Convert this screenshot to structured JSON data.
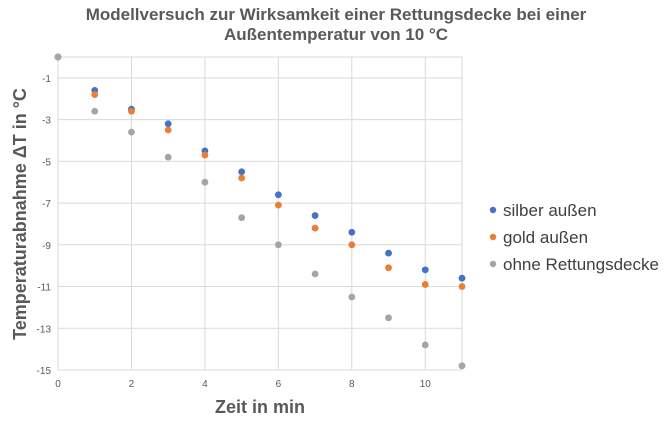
{
  "chart_data": {
    "type": "scatter",
    "title": [
      "Modellversuch zur Wirksamkeit einer Rettungsdecke bei einer",
      "Außentemperatur von 10 °C"
    ],
    "xlabel": "Zeit in min",
    "ylabel": "Temperaturabnahme ΔT in °C",
    "xlim": [
      0,
      11
    ],
    "ylim": [
      -15,
      0
    ],
    "xticks": [
      0,
      2,
      4,
      6,
      8,
      10
    ],
    "yticks": [
      -1,
      -3,
      -5,
      -7,
      -9,
      -11,
      -13,
      -15
    ],
    "grid": true,
    "legend_position": "right",
    "series": [
      {
        "name": "silber außen",
        "color": "#4472c4",
        "x": [
          0,
          1,
          2,
          3,
          4,
          5,
          6,
          7,
          8,
          9,
          10,
          11
        ],
        "y": [
          0,
          -1.6,
          -2.5,
          -3.2,
          -4.5,
          -5.5,
          -6.6,
          -7.6,
          -8.4,
          -9.4,
          -10.2,
          -10.6
        ]
      },
      {
        "name": "gold außen",
        "color": "#ed7d31",
        "x": [
          0,
          1,
          2,
          3,
          4,
          5,
          6,
          7,
          8,
          9,
          10,
          11
        ],
        "y": [
          0,
          -1.8,
          -2.6,
          -3.5,
          -4.7,
          -5.8,
          -7.1,
          -8.2,
          -9.0,
          -10.1,
          -10.9,
          -11.0
        ]
      },
      {
        "name": "ohne Rettungsdecke",
        "color": "#a5a5a5",
        "x": [
          0,
          1,
          2,
          3,
          4,
          5,
          6,
          7,
          8,
          9,
          10,
          11
        ],
        "y": [
          0,
          -2.6,
          -3.6,
          -4.8,
          -6.0,
          -7.7,
          -9.0,
          -10.4,
          -11.5,
          -12.5,
          -13.8,
          -14.8
        ]
      }
    ]
  }
}
